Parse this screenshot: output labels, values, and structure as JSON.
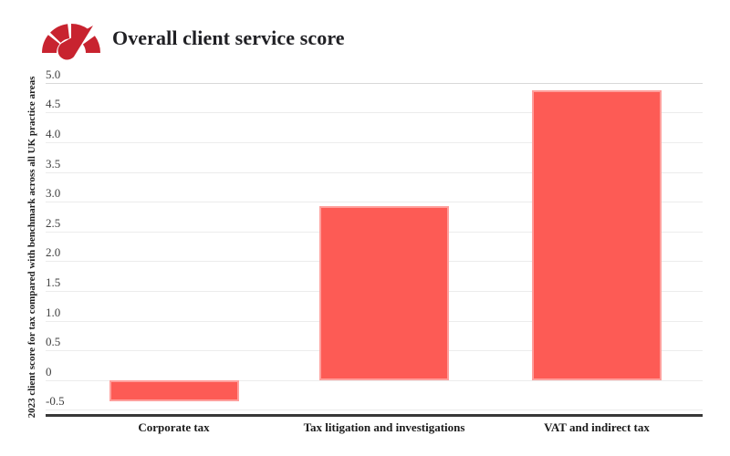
{
  "header": {
    "title": "Overall client service score",
    "icon": "gauge-icon",
    "icon_color": "#c8232f"
  },
  "chart_data": {
    "type": "bar",
    "title": "Overall client service score",
    "xlabel": "",
    "ylabel": "2023 client score for tax compared with benchmark across all UK practice areas",
    "categories": [
      "Corporate tax",
      "Tax litigation and investigations",
      "VAT and indirect tax"
    ],
    "values": [
      -0.35,
      2.93,
      4.88
    ],
    "ytick_labels": [
      "5.0",
      "4.5",
      "4.0",
      "3.5",
      "3.0",
      "2.5",
      "2.0",
      "1.5",
      "1.0",
      "0.5",
      "0",
      "-0.5"
    ],
    "ytick_values": [
      5.0,
      4.5,
      4.0,
      3.5,
      3.0,
      2.5,
      2.0,
      1.5,
      1.0,
      0.5,
      0,
      -0.5
    ],
    "ylim": [
      -0.6,
      5.1
    ],
    "grid": true,
    "legend": "none",
    "bar_color": "#fd5b55",
    "axis_line_color": "#383838"
  }
}
